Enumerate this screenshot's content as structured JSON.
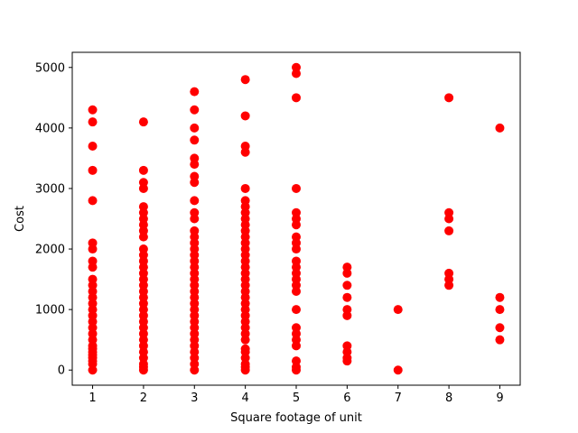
{
  "chart_data": {
    "type": "scatter",
    "title": "",
    "xlabel": "Square footage of unit",
    "ylabel": "Cost",
    "xlim": [
      0.6,
      9.4
    ],
    "ylim": [
      -250,
      5250
    ],
    "xticks": [
      1,
      2,
      3,
      4,
      5,
      6,
      7,
      8,
      9
    ],
    "yticks": [
      0,
      1000,
      2000,
      3000,
      4000,
      5000
    ],
    "grid": false,
    "legend": "none",
    "marker_color": "#ff0000",
    "series": [
      {
        "points": [
          [
            1,
            0
          ],
          [
            1,
            100
          ],
          [
            1,
            150
          ],
          [
            1,
            200
          ],
          [
            1,
            250
          ],
          [
            1,
            300
          ],
          [
            1,
            350
          ],
          [
            1,
            400
          ],
          [
            1,
            500
          ],
          [
            1,
            600
          ],
          [
            1,
            700
          ],
          [
            1,
            800
          ],
          [
            1,
            900
          ],
          [
            1,
            1000
          ],
          [
            1,
            1100
          ],
          [
            1,
            1200
          ],
          [
            1,
            1300
          ],
          [
            1,
            1400
          ],
          [
            1,
            1500
          ],
          [
            1,
            1700
          ],
          [
            1,
            1800
          ],
          [
            1,
            2000
          ],
          [
            1,
            2100
          ],
          [
            1,
            2800
          ],
          [
            1,
            3300
          ],
          [
            1,
            3700
          ],
          [
            1,
            4100
          ],
          [
            1,
            4300
          ],
          [
            2,
            0
          ],
          [
            2,
            50
          ],
          [
            2,
            100
          ],
          [
            2,
            200
          ],
          [
            2,
            300
          ],
          [
            2,
            400
          ],
          [
            2,
            500
          ],
          [
            2,
            600
          ],
          [
            2,
            700
          ],
          [
            2,
            800
          ],
          [
            2,
            900
          ],
          [
            2,
            1000
          ],
          [
            2,
            1100
          ],
          [
            2,
            1200
          ],
          [
            2,
            1300
          ],
          [
            2,
            1400
          ],
          [
            2,
            1500
          ],
          [
            2,
            1600
          ],
          [
            2,
            1700
          ],
          [
            2,
            1800
          ],
          [
            2,
            1900
          ],
          [
            2,
            2000
          ],
          [
            2,
            2200
          ],
          [
            2,
            2300
          ],
          [
            2,
            2400
          ],
          [
            2,
            2500
          ],
          [
            2,
            2600
          ],
          [
            2,
            2700
          ],
          [
            2,
            3000
          ],
          [
            2,
            3100
          ],
          [
            2,
            3300
          ],
          [
            2,
            4100
          ],
          [
            3,
            0
          ],
          [
            3,
            100
          ],
          [
            3,
            200
          ],
          [
            3,
            300
          ],
          [
            3,
            400
          ],
          [
            3,
            500
          ],
          [
            3,
            600
          ],
          [
            3,
            700
          ],
          [
            3,
            800
          ],
          [
            3,
            900
          ],
          [
            3,
            1000
          ],
          [
            3,
            1100
          ],
          [
            3,
            1200
          ],
          [
            3,
            1300
          ],
          [
            3,
            1400
          ],
          [
            3,
            1500
          ],
          [
            3,
            1600
          ],
          [
            3,
            1700
          ],
          [
            3,
            1800
          ],
          [
            3,
            1900
          ],
          [
            3,
            2000
          ],
          [
            3,
            2100
          ],
          [
            3,
            2200
          ],
          [
            3,
            2300
          ],
          [
            3,
            2500
          ],
          [
            3,
            2600
          ],
          [
            3,
            2800
          ],
          [
            3,
            3100
          ],
          [
            3,
            3200
          ],
          [
            3,
            3400
          ],
          [
            3,
            3500
          ],
          [
            3,
            3800
          ],
          [
            3,
            4000
          ],
          [
            3,
            4300
          ],
          [
            3,
            4600
          ],
          [
            4,
            0
          ],
          [
            4,
            50
          ],
          [
            4,
            100
          ],
          [
            4,
            200
          ],
          [
            4,
            300
          ],
          [
            4,
            350
          ],
          [
            4,
            500
          ],
          [
            4,
            600
          ],
          [
            4,
            700
          ],
          [
            4,
            800
          ],
          [
            4,
            900
          ],
          [
            4,
            1000
          ],
          [
            4,
            1100
          ],
          [
            4,
            1200
          ],
          [
            4,
            1300
          ],
          [
            4,
            1400
          ],
          [
            4,
            1500
          ],
          [
            4,
            1600
          ],
          [
            4,
            1700
          ],
          [
            4,
            1800
          ],
          [
            4,
            1900
          ],
          [
            4,
            2000
          ],
          [
            4,
            2100
          ],
          [
            4,
            2200
          ],
          [
            4,
            2300
          ],
          [
            4,
            2400
          ],
          [
            4,
            2500
          ],
          [
            4,
            2600
          ],
          [
            4,
            2700
          ],
          [
            4,
            2800
          ],
          [
            4,
            3000
          ],
          [
            4,
            3600
          ],
          [
            4,
            3700
          ],
          [
            4,
            4200
          ],
          [
            4,
            4800
          ],
          [
            5,
            0
          ],
          [
            5,
            50
          ],
          [
            5,
            150
          ],
          [
            5,
            400
          ],
          [
            5,
            500
          ],
          [
            5,
            600
          ],
          [
            5,
            700
          ],
          [
            5,
            1000
          ],
          [
            5,
            1300
          ],
          [
            5,
            1400
          ],
          [
            5,
            1500
          ],
          [
            5,
            1600
          ],
          [
            5,
            1700
          ],
          [
            5,
            1800
          ],
          [
            5,
            2000
          ],
          [
            5,
            2100
          ],
          [
            5,
            2200
          ],
          [
            5,
            2400
          ],
          [
            5,
            2500
          ],
          [
            5,
            2600
          ],
          [
            5,
            3000
          ],
          [
            5,
            4500
          ],
          [
            5,
            4900
          ],
          [
            5,
            5000
          ],
          [
            6,
            150
          ],
          [
            6,
            200
          ],
          [
            6,
            300
          ],
          [
            6,
            400
          ],
          [
            6,
            900
          ],
          [
            6,
            1000
          ],
          [
            6,
            1200
          ],
          [
            6,
            1400
          ],
          [
            6,
            1600
          ],
          [
            6,
            1700
          ],
          [
            7,
            0
          ],
          [
            7,
            1000
          ],
          [
            8,
            1400
          ],
          [
            8,
            1500
          ],
          [
            8,
            1600
          ],
          [
            8,
            2300
          ],
          [
            8,
            2500
          ],
          [
            8,
            2600
          ],
          [
            8,
            4500
          ],
          [
            9,
            500
          ],
          [
            9,
            700
          ],
          [
            9,
            1000
          ],
          [
            9,
            1200
          ],
          [
            9,
            4000
          ]
        ]
      }
    ]
  }
}
